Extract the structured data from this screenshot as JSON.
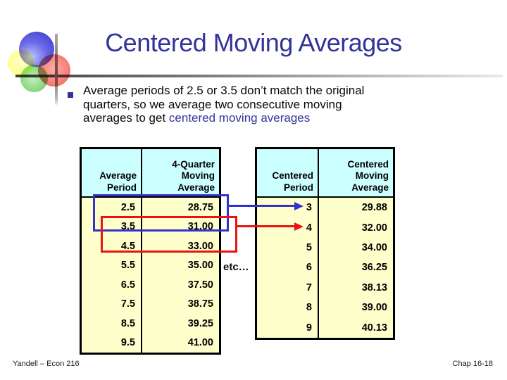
{
  "slide": {
    "title": "Centered Moving Averages",
    "bullet": {
      "lines": [
        "Average periods of 2.5 or 3.5 don’t match the original",
        "quarters, so we average two consecutive moving",
        "averages to get "
      ],
      "highlight": "centered moving averages"
    },
    "etc_label": "etc…",
    "footer_left": "Yandell – Econ 216",
    "footer_right": "Chap 16-18"
  },
  "left_table": {
    "header": [
      "Average\nPeriod",
      "4-Quarter\nMoving\nAverage"
    ],
    "rows": [
      [
        "2.5",
        "28.75"
      ],
      [
        "3.5",
        "31.00"
      ],
      [
        "4.5",
        "33.00"
      ],
      [
        "5.5",
        "35.00"
      ],
      [
        "6.5",
        "37.50"
      ],
      [
        "7.5",
        "38.75"
      ],
      [
        "8.5",
        "39.25"
      ],
      [
        "9.5",
        "41.00"
      ]
    ]
  },
  "right_table": {
    "header": [
      "Centered\nPeriod",
      "Centered\nMoving\nAverage"
    ],
    "rows": [
      [
        "3",
        "29.88"
      ],
      [
        "4",
        "32.00"
      ],
      [
        "5",
        "34.00"
      ],
      [
        "6",
        "36.25"
      ],
      [
        "7",
        "38.13"
      ],
      [
        "8",
        "39.00"
      ],
      [
        "9",
        "40.13"
      ]
    ]
  },
  "colors": {
    "title_text": "#333399",
    "highlight_text": "#333399",
    "header_fill": "#CCFFFF",
    "cell_fill": "#FFFFCC",
    "table_border": "#000000",
    "blue_annotation": "#3333CC",
    "red_annotation": "#EE1111"
  }
}
